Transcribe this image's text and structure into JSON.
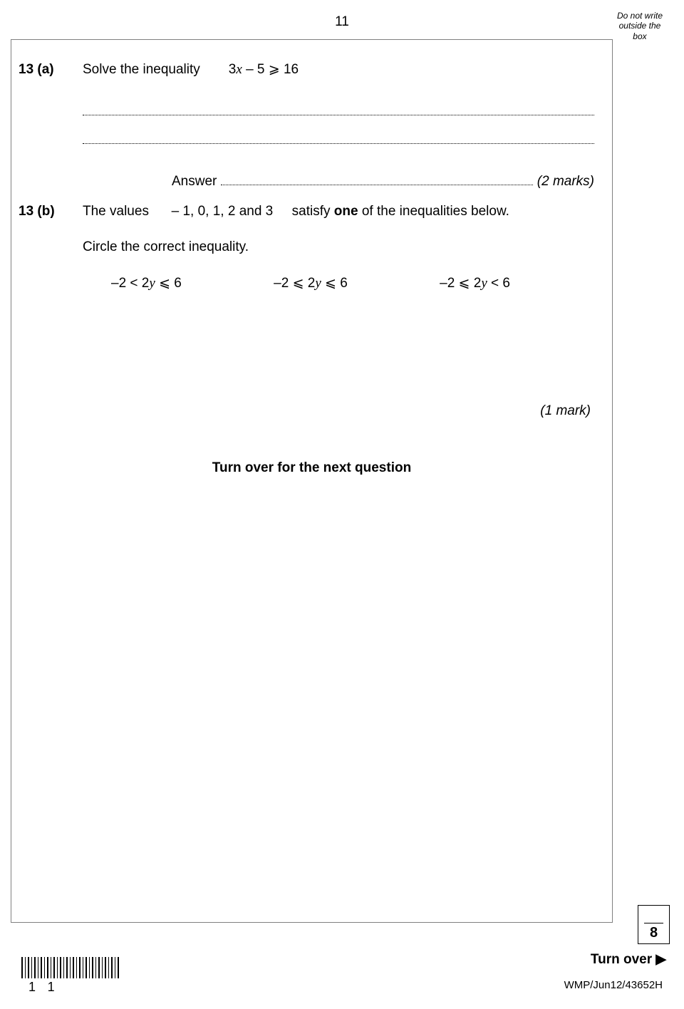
{
  "pageNumber": "11",
  "marginNote": {
    "l1": "Do not write",
    "l2": "outside the",
    "l3": "box"
  },
  "q13a": {
    "num": "13 (a)",
    "text": "Solve the inequality",
    "expr_pre": "3",
    "expr_var": "x",
    "expr_post": " – 5 ⩾ 16"
  },
  "answerLabel": "Answer",
  "marks2": "(2 marks)",
  "q13b": {
    "num": "13 (b)",
    "text_pre": "The values",
    "values": "– 1, 0, 1, 2 and 3",
    "text_mid": "satisfy ",
    "bold": "one",
    "text_post": " of the inequalities below.",
    "circle": "Circle the correct inequality."
  },
  "ineq": {
    "a_pre": "–2 < 2",
    "a_var": "y",
    "a_post": " ⩽ 6",
    "b_pre": "–2 ⩽ 2",
    "b_var": "y",
    "b_post": " ⩽ 6",
    "c_pre": "–2 ⩽ 2",
    "c_var": "y",
    "c_post": " < 6"
  },
  "mark1": "(1 mark)",
  "turnNext": "Turn over for the next question",
  "scoreVal": "8",
  "turnOver": "Turn over ▶",
  "barcodeNums": "11",
  "footerCode": "WMP/Jun12/43652H"
}
